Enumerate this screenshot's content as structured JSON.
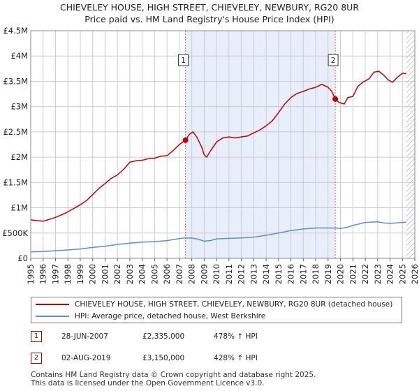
{
  "title": {
    "line1": "CHIEVELEY HOUSE, HIGH STREET, CHIEVELEY, NEWBURY, RG20 8UR",
    "line2": "Price paid vs. HM Land Registry's House Price Index (HPI)"
  },
  "colors": {
    "property_line": "#c00000",
    "hpi_line": "#5b8fc9",
    "highlight": "#e8eefa",
    "grid": "#cccccc",
    "marker_vline": "#e06060",
    "hatch": "#999999"
  },
  "chart_data": {
    "type": "line",
    "x_range": [
      1995.0,
      2026.0
    ],
    "y_range": [
      0,
      4500000
    ],
    "y_ticks": [
      0,
      500000,
      1000000,
      1500000,
      2000000,
      2500000,
      3000000,
      3500000,
      4000000,
      4500000
    ],
    "y_tick_labels": [
      "£0",
      "£500K",
      "£1M",
      "£1.5M",
      "£2M",
      "£2.5M",
      "£3M",
      "£3.5M",
      "£4M",
      "£4.5M"
    ],
    "x_ticks": [
      1995,
      1996,
      1997,
      1998,
      1999,
      2000,
      2001,
      2002,
      2003,
      2004,
      2005,
      2006,
      2007,
      2008,
      2009,
      2010,
      2011,
      2012,
      2013,
      2014,
      2015,
      2016,
      2017,
      2018,
      2019,
      2020,
      2021,
      2022,
      2023,
      2024,
      2025,
      2026
    ],
    "x_tick_labels": [
      "1995",
      "1996",
      "1997",
      "1998",
      "1999",
      "2000",
      "2001",
      "2002",
      "2003",
      "2004",
      "2005",
      "2006",
      "2007",
      "2008",
      "2009",
      "2010",
      "2011",
      "2012",
      "2013",
      "2014",
      "2015",
      "2016",
      "2017",
      "2018",
      "2019",
      "2020",
      "2021",
      "2022",
      "2023",
      "2024",
      "2025",
      "2026"
    ],
    "highlight_range": [
      2007.49,
      2019.58
    ],
    "hatch_from": 2025.3,
    "series": [
      {
        "name": "CHIEVELEY HOUSE, HIGH STREET, CHIEVELEY, NEWBURY, RG20 8UR (detached house)",
        "color": "#c00000",
        "points": [
          [
            1995.0,
            760000
          ],
          [
            1995.5,
            745000
          ],
          [
            1996.0,
            735000
          ],
          [
            1996.5,
            770000
          ],
          [
            1997.0,
            810000
          ],
          [
            1997.5,
            860000
          ],
          [
            1998.0,
            920000
          ],
          [
            1998.5,
            990000
          ],
          [
            1999.0,
            1060000
          ],
          [
            1999.5,
            1140000
          ],
          [
            2000.0,
            1260000
          ],
          [
            2000.5,
            1380000
          ],
          [
            2001.0,
            1480000
          ],
          [
            2001.5,
            1580000
          ],
          [
            2002.0,
            1650000
          ],
          [
            2002.5,
            1760000
          ],
          [
            2003.0,
            1900000
          ],
          [
            2003.5,
            1930000
          ],
          [
            2004.0,
            1940000
          ],
          [
            2004.5,
            1970000
          ],
          [
            2005.0,
            1980000
          ],
          [
            2005.5,
            2020000
          ],
          [
            2006.0,
            2030000
          ],
          [
            2006.5,
            2130000
          ],
          [
            2007.0,
            2250000
          ],
          [
            2007.49,
            2335000
          ],
          [
            2007.8,
            2450000
          ],
          [
            2008.1,
            2500000
          ],
          [
            2008.4,
            2400000
          ],
          [
            2008.8,
            2200000
          ],
          [
            2009.0,
            2050000
          ],
          [
            2009.2,
            2000000
          ],
          [
            2009.5,
            2120000
          ],
          [
            2010.0,
            2300000
          ],
          [
            2010.5,
            2380000
          ],
          [
            2011.0,
            2400000
          ],
          [
            2011.5,
            2380000
          ],
          [
            2012.0,
            2400000
          ],
          [
            2012.5,
            2420000
          ],
          [
            2013.0,
            2480000
          ],
          [
            2013.5,
            2540000
          ],
          [
            2014.0,
            2620000
          ],
          [
            2014.5,
            2720000
          ],
          [
            2015.0,
            2880000
          ],
          [
            2015.5,
            3050000
          ],
          [
            2016.0,
            3180000
          ],
          [
            2016.5,
            3260000
          ],
          [
            2017.0,
            3300000
          ],
          [
            2017.5,
            3350000
          ],
          [
            2018.0,
            3380000
          ],
          [
            2018.5,
            3440000
          ],
          [
            2019.0,
            3380000
          ],
          [
            2019.3,
            3300000
          ],
          [
            2019.58,
            3150000
          ],
          [
            2019.9,
            3080000
          ],
          [
            2020.3,
            3050000
          ],
          [
            2020.6,
            3180000
          ],
          [
            2021.0,
            3200000
          ],
          [
            2021.4,
            3400000
          ],
          [
            2021.8,
            3480000
          ],
          [
            2022.3,
            3550000
          ],
          [
            2022.7,
            3680000
          ],
          [
            2023.1,
            3700000
          ],
          [
            2023.5,
            3620000
          ],
          [
            2023.9,
            3520000
          ],
          [
            2024.2,
            3480000
          ],
          [
            2024.6,
            3580000
          ],
          [
            2025.0,
            3660000
          ],
          [
            2025.3,
            3650000
          ]
        ]
      },
      {
        "name": "HPI: Average price, detached house, West Berkshire",
        "color": "#5b8fc9",
        "points": [
          [
            1995.0,
            130000
          ],
          [
            1996.0,
            135000
          ],
          [
            1997.0,
            150000
          ],
          [
            1998.0,
            165000
          ],
          [
            1999.0,
            185000
          ],
          [
            2000.0,
            215000
          ],
          [
            2001.0,
            240000
          ],
          [
            2002.0,
            275000
          ],
          [
            2003.0,
            300000
          ],
          [
            2004.0,
            320000
          ],
          [
            2005.0,
            330000
          ],
          [
            2006.0,
            350000
          ],
          [
            2007.0,
            390000
          ],
          [
            2007.49,
            404000
          ],
          [
            2008.0,
            400000
          ],
          [
            2008.5,
            380000
          ],
          [
            2009.0,
            340000
          ],
          [
            2009.5,
            350000
          ],
          [
            2010.0,
            385000
          ],
          [
            2011.0,
            395000
          ],
          [
            2012.0,
            405000
          ],
          [
            2013.0,
            420000
          ],
          [
            2014.0,
            455000
          ],
          [
            2015.0,
            500000
          ],
          [
            2016.0,
            550000
          ],
          [
            2017.0,
            580000
          ],
          [
            2018.0,
            600000
          ],
          [
            2019.0,
            600000
          ],
          [
            2019.58,
            596000
          ],
          [
            2020.0,
            590000
          ],
          [
            2020.5,
            610000
          ],
          [
            2021.0,
            650000
          ],
          [
            2022.0,
            710000
          ],
          [
            2023.0,
            720000
          ],
          [
            2023.5,
            700000
          ],
          [
            2024.0,
            690000
          ],
          [
            2025.0,
            710000
          ],
          [
            2025.3,
            715000
          ]
        ]
      }
    ],
    "sales": [
      {
        "id": "1",
        "x": 2007.49,
        "value": 2335000,
        "date": "28-JUN-2007",
        "price": "£2,335,000",
        "hpi_change": "478% ↑ HPI"
      },
      {
        "id": "2",
        "x": 2019.58,
        "value": 3150000,
        "date": "02-AUG-2019",
        "price": "£3,150,000",
        "hpi_change": "428% ↑ HPI"
      }
    ]
  },
  "legend": {
    "property_label": "CHIEVELEY HOUSE, HIGH STREET, CHIEVELEY, NEWBURY, RG20 8UR (detached house)",
    "hpi_label": "HPI: Average price, detached house, West Berkshire"
  },
  "sales_table": [
    {
      "id": "1",
      "date": "28-JUN-2007",
      "price": "£2,335,000",
      "hpi": "478% ↑ HPI"
    },
    {
      "id": "2",
      "date": "02-AUG-2019",
      "price": "£3,150,000",
      "hpi": "428% ↑ HPI"
    }
  ],
  "footer": {
    "line1": "Contains HM Land Registry data © Crown copyright and database right 2025.",
    "line2": "This data is licensed under the Open Government Licence v3.0."
  }
}
